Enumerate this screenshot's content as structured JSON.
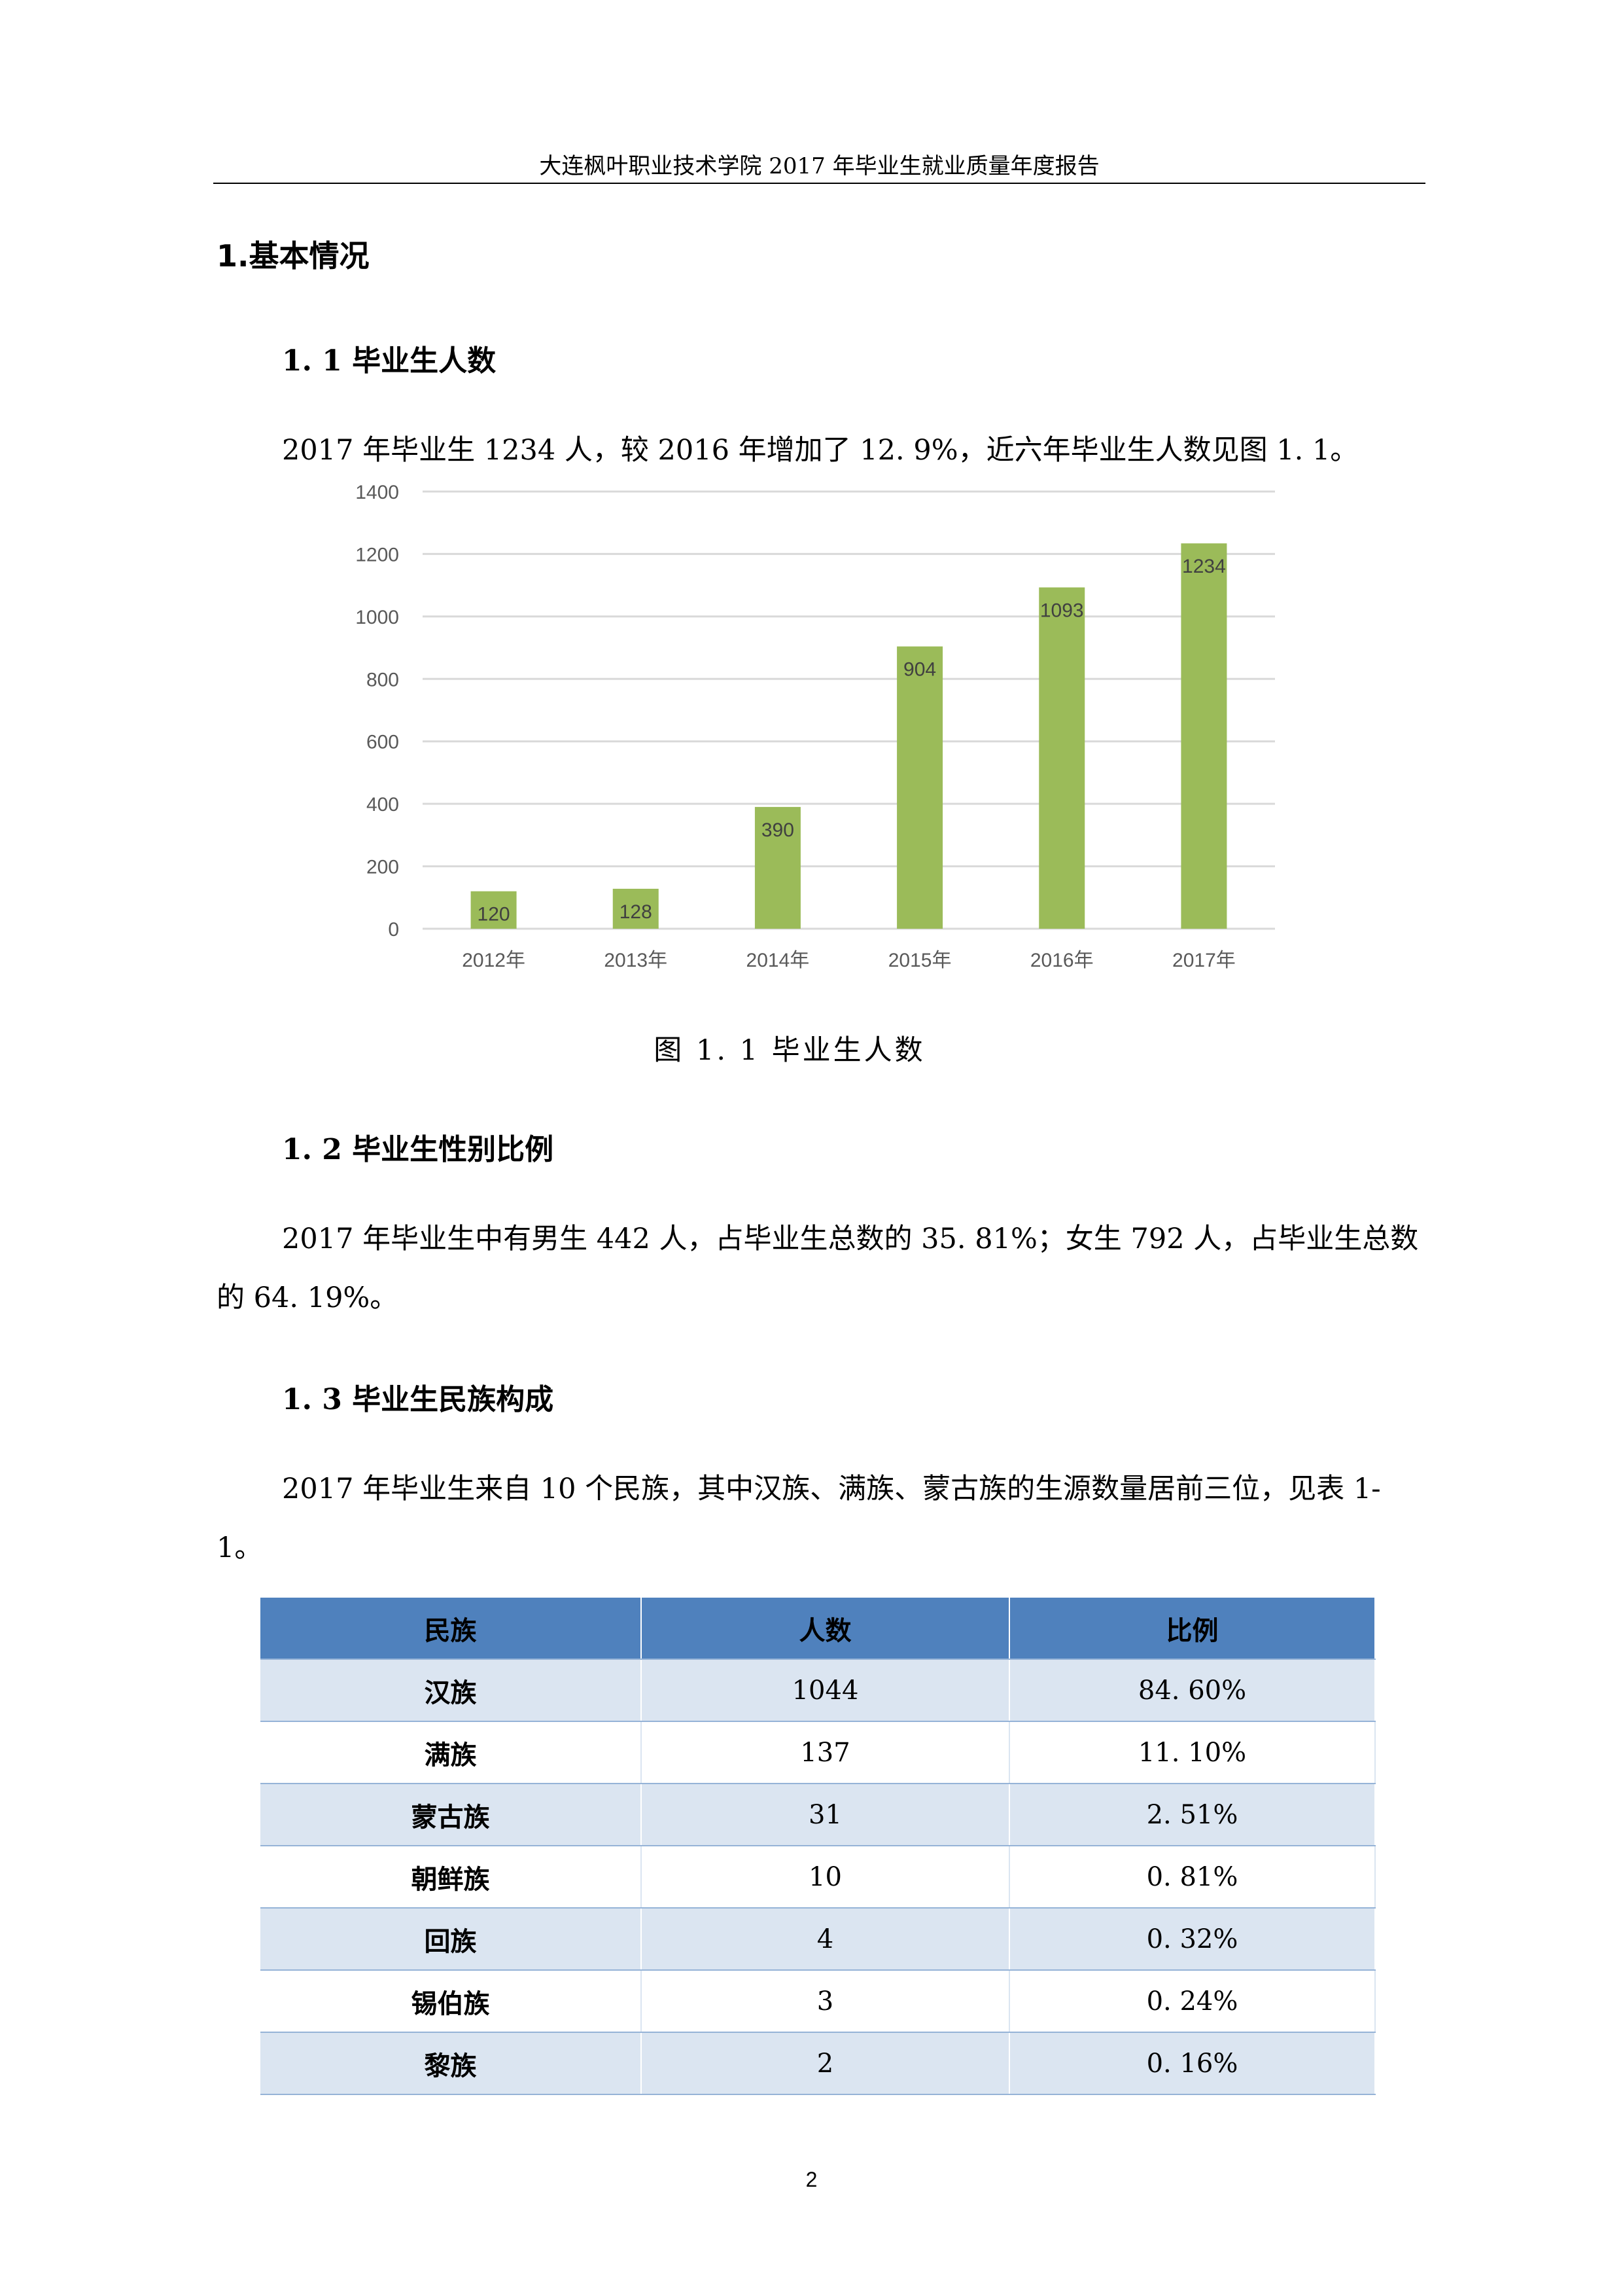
{
  "header": {
    "title": "大连枫叶职业技术学院 2017 年毕业生就业质量年度报告"
  },
  "section1": {
    "heading": "1.基本情况"
  },
  "s11": {
    "heading": "1. 1 毕业生人数",
    "paragraph": "2017 年毕业生 1234 人，较 2016 年增加了 12. 9%，近六年毕业生人数见图 1. 1。",
    "caption": "图 1. 1 毕业生人数"
  },
  "chart_data": {
    "type": "bar",
    "categories": [
      "2012年",
      "2013年",
      "2014年",
      "2015年",
      "2016年",
      "2017年"
    ],
    "values": [
      120,
      128,
      390,
      904,
      1093,
      1234
    ],
    "yticks": [
      "0",
      "200",
      "400",
      "600",
      "800",
      "1000",
      "1200",
      "1400"
    ],
    "ylim": [
      0,
      1400
    ],
    "grid": true,
    "color": "#9bbb59",
    "data_labels": true
  },
  "s12": {
    "heading": "1. 2 毕业生性别比例",
    "paragraph": "2017 年毕业生中有男生 442 人，占毕业生总数的 35. 81%；女生 792 人，占毕业生总数的 64. 19%。"
  },
  "s13": {
    "heading": "1. 3 毕业生民族构成",
    "paragraph": "2017 年毕业生来自 10 个民族，其中汉族、满族、蒙古族的生源数量居前三位，见表 1-1。"
  },
  "table": {
    "headers": [
      "民族",
      "人数",
      "比例"
    ],
    "rows": [
      [
        "汉族",
        "1044",
        "84. 60%"
      ],
      [
        "满族",
        "137",
        "11. 10%"
      ],
      [
        "蒙古族",
        "31",
        "2. 51%"
      ],
      [
        "朝鲜族",
        "10",
        "0. 81%"
      ],
      [
        "回族",
        "4",
        "0. 32%"
      ],
      [
        "锡伯族",
        "3",
        "0. 24%"
      ],
      [
        "黎族",
        "2",
        "0. 16%"
      ]
    ],
    "header_color": "#4f81bd",
    "stripe_color": "#dbe5f1"
  },
  "page_number": "2"
}
